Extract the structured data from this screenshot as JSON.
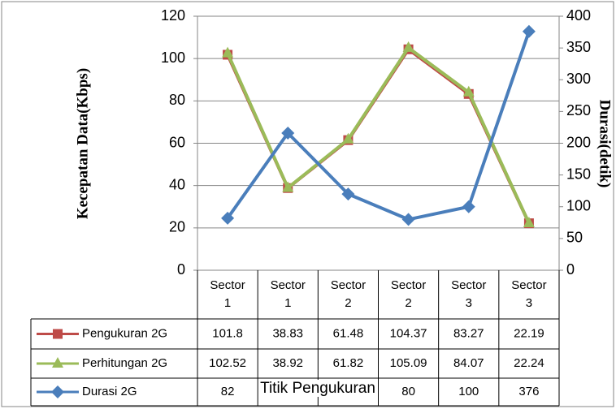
{
  "chart_data": {
    "type": "line",
    "x_label": "Titik Pengukuran",
    "y_label": "Kecepatan Data(Kbps)",
    "y2_label": "Durasi(detik)",
    "categories": [
      "Sector 1",
      "Sector 1",
      "Sector 2",
      "Sector 2",
      "Sector 3",
      "Sector 3"
    ],
    "series": [
      {
        "name": "Pengukuran 2G",
        "color": "#be4b48",
        "marker": "square",
        "values": [
          101.8,
          38.83,
          61.48,
          104.37,
          83.27,
          22.19
        ]
      },
      {
        "name": "Perhitungan 2G",
        "color": "#9bbb59",
        "marker": "triangle",
        "values": [
          102.52,
          38.92,
          61.82,
          105.09,
          84.07,
          22.24
        ]
      },
      {
        "name": "Durasi 2G",
        "color": "#4a7ebb",
        "marker": "diamond",
        "axis": "y2",
        "values": [
          82,
          216,
          120,
          80,
          100,
          376
        ]
      }
    ],
    "ylim": [
      0,
      120
    ],
    "yticks": [
      0,
      20,
      40,
      60,
      80,
      100,
      120
    ],
    "y2lim": [
      0,
      400
    ],
    "y2ticks": [
      0,
      50,
      100,
      150,
      200,
      250,
      300,
      350,
      400
    ],
    "grid": true
  }
}
